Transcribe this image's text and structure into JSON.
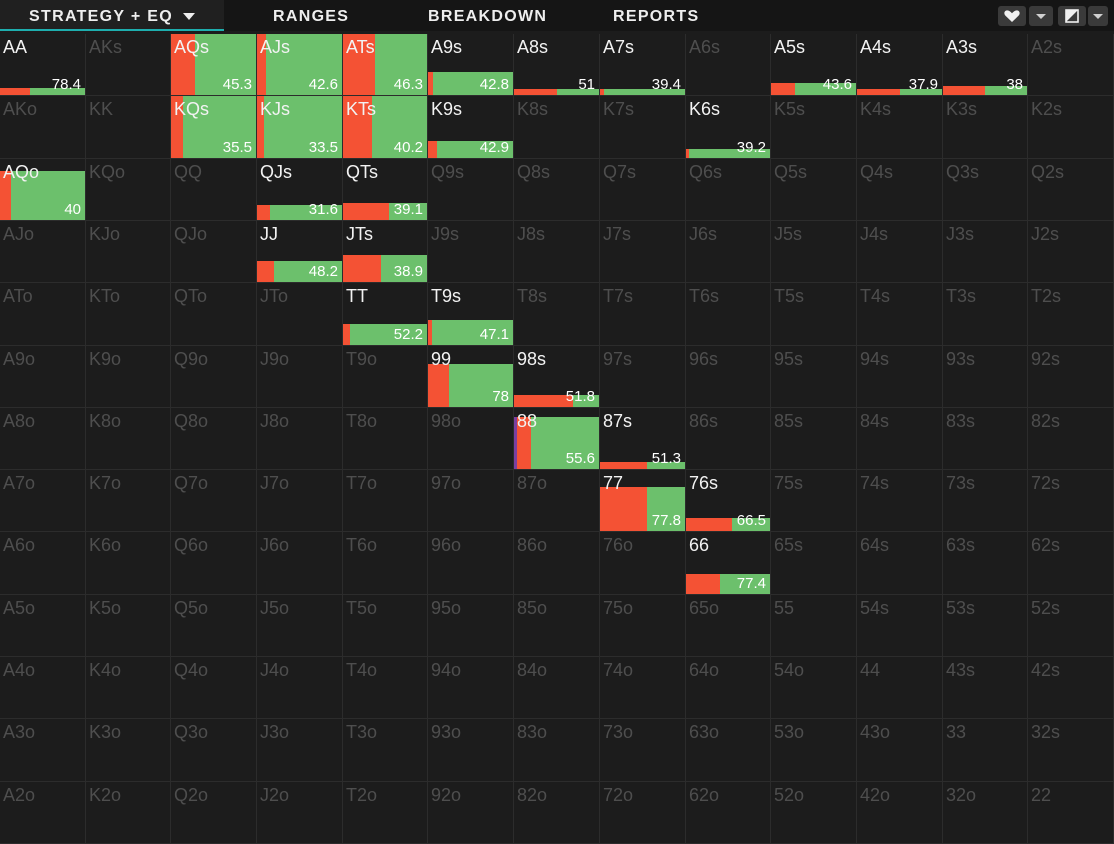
{
  "tabs": [
    {
      "id": "strategy",
      "label": "STRATEGY + EQ",
      "active": true
    },
    {
      "id": "ranges",
      "label": "RANGES"
    },
    {
      "id": "breakdown",
      "label": "BREAKDOWN"
    },
    {
      "id": "reports",
      "label": "REPORTS"
    }
  ],
  "toolbar": {
    "favorite_icon": "heart-icon",
    "view_icon": "contrast-icon",
    "dropdown_icon": "chevron-down-icon"
  },
  "colors": {
    "raise": "#f45234",
    "call": "#6cc06c",
    "accent": "#1eaeae",
    "background": "#1c1c1c"
  },
  "matrix": [
    [
      {
        "h": "AA",
        "eq": "78.4",
        "f": 0.12,
        "r": 0.35
      },
      {
        "h": "AKs"
      },
      {
        "h": "AQs",
        "eq": "45.3",
        "f": 1,
        "r": 0.28
      },
      {
        "h": "AJs",
        "eq": "42.6",
        "f": 1,
        "r": 0.1
      },
      {
        "h": "ATs",
        "eq": "46.3",
        "f": 1,
        "r": 0.38
      },
      {
        "h": "A9s",
        "eq": "42.8",
        "f": 0.38,
        "r": 0.06
      },
      {
        "h": "A8s",
        "eq": "51",
        "f": 0.06,
        "r": 0.5
      },
      {
        "h": "A7s",
        "eq": "39.4",
        "f": 0.06,
        "r": 0.05
      },
      {
        "h": "A6s"
      },
      {
        "h": "A5s",
        "eq": "43.6",
        "f": 0.2,
        "r": 0.28
      },
      {
        "h": "A4s",
        "eq": "37.9",
        "f": 0.06,
        "r": 0.5
      },
      {
        "h": "A3s",
        "eq": "38",
        "f": 0.15,
        "r": 0.5
      },
      {
        "h": "A2s"
      }
    ],
    [
      {
        "h": "AKo"
      },
      {
        "h": "KK"
      },
      {
        "h": "KQs",
        "eq": "35.5",
        "f": 1,
        "r": 0.14
      },
      {
        "h": "KJs",
        "eq": "33.5",
        "f": 1,
        "r": 0.08
      },
      {
        "h": "KTs",
        "eq": "40.2",
        "f": 1,
        "r": 0.35
      },
      {
        "h": "K9s",
        "eq": "42.9",
        "f": 0.28,
        "r": 0.1
      },
      {
        "h": "K8s"
      },
      {
        "h": "K7s"
      },
      {
        "h": "K6s",
        "eq": "39.2",
        "f": 0.14,
        "r": 0.03
      },
      {
        "h": "K5s"
      },
      {
        "h": "K4s"
      },
      {
        "h": "K3s"
      },
      {
        "h": "K2s"
      }
    ],
    [
      {
        "h": "AQo",
        "eq": "40",
        "f": 0.8,
        "r": 0.13
      },
      {
        "h": "KQo"
      },
      {
        "h": "QQ"
      },
      {
        "h": "QJs",
        "eq": "31.6",
        "f": 0.24,
        "r": 0.15
      },
      {
        "h": "QTs",
        "eq": "39.1",
        "f": 0.28,
        "r": 0.55
      },
      {
        "h": "Q9s"
      },
      {
        "h": "Q8s"
      },
      {
        "h": "Q7s"
      },
      {
        "h": "Q6s"
      },
      {
        "h": "Q5s"
      },
      {
        "h": "Q4s"
      },
      {
        "h": "Q3s"
      },
      {
        "h": "Q2s"
      }
    ],
    [
      {
        "h": "AJo"
      },
      {
        "h": "KJo"
      },
      {
        "h": "QJo"
      },
      {
        "h": "JJ",
        "eq": "48.2",
        "f": 0.34,
        "r": 0.2
      },
      {
        "h": "JTs",
        "eq": "38.9",
        "f": 0.45,
        "r": 0.45
      },
      {
        "h": "J9s"
      },
      {
        "h": "J8s"
      },
      {
        "h": "J7s"
      },
      {
        "h": "J6s"
      },
      {
        "h": "J5s"
      },
      {
        "h": "J4s"
      },
      {
        "h": "J3s"
      },
      {
        "h": "J2s"
      }
    ],
    [
      {
        "h": "ATo"
      },
      {
        "h": "KTo"
      },
      {
        "h": "QTo"
      },
      {
        "h": "JTo"
      },
      {
        "h": "TT",
        "eq": "52.2",
        "f": 0.34,
        "r": 0.08
      },
      {
        "h": "T9s",
        "eq": "47.1",
        "f": 0.4,
        "r": 0.05
      },
      {
        "h": "T8s"
      },
      {
        "h": "T7s"
      },
      {
        "h": "T6s"
      },
      {
        "h": "T5s"
      },
      {
        "h": "T4s"
      },
      {
        "h": "T3s"
      },
      {
        "h": "T2s"
      }
    ],
    [
      {
        "h": "A9o"
      },
      {
        "h": "K9o"
      },
      {
        "h": "Q9o"
      },
      {
        "h": "J9o"
      },
      {
        "h": "T9o"
      },
      {
        "h": "99",
        "eq": "78",
        "f": 0.7,
        "r": 0.25
      },
      {
        "h": "98s",
        "eq": "51.8",
        "f": 0.2,
        "r": 0.7
      },
      {
        "h": "97s"
      },
      {
        "h": "96s"
      },
      {
        "h": "95s"
      },
      {
        "h": "94s"
      },
      {
        "h": "93s"
      },
      {
        "h": "92s"
      }
    ],
    [
      {
        "h": "A8o"
      },
      {
        "h": "K8o"
      },
      {
        "h": "Q8o"
      },
      {
        "h": "J8o"
      },
      {
        "h": "T8o"
      },
      {
        "h": "98o"
      },
      {
        "h": "88",
        "eq": "55.6",
        "f": 0.85,
        "r": 0.2,
        "purple": true
      },
      {
        "h": "87s",
        "eq": "51.3",
        "f": 0.12,
        "r": 0.55
      },
      {
        "h": "86s"
      },
      {
        "h": "85s"
      },
      {
        "h": "84s"
      },
      {
        "h": "83s"
      },
      {
        "h": "82s"
      }
    ],
    [
      {
        "h": "A7o"
      },
      {
        "h": "K7o"
      },
      {
        "h": "Q7o"
      },
      {
        "h": "J7o"
      },
      {
        "h": "T7o"
      },
      {
        "h": "97o"
      },
      {
        "h": "87o"
      },
      {
        "h": "77",
        "eq": "77.8",
        "f": 0.72,
        "r": 0.55
      },
      {
        "h": "76s",
        "eq": "66.5",
        "f": 0.22,
        "r": 0.55
      },
      {
        "h": "75s"
      },
      {
        "h": "74s"
      },
      {
        "h": "73s"
      },
      {
        "h": "72s"
      }
    ],
    [
      {
        "h": "A6o"
      },
      {
        "h": "K6o"
      },
      {
        "h": "Q6o"
      },
      {
        "h": "J6o"
      },
      {
        "h": "T6o"
      },
      {
        "h": "96o"
      },
      {
        "h": "86o"
      },
      {
        "h": "76o"
      },
      {
        "h": "66",
        "eq": "77.4",
        "f": 0.32,
        "r": 0.4
      },
      {
        "h": "65s"
      },
      {
        "h": "64s"
      },
      {
        "h": "63s"
      },
      {
        "h": "62s"
      }
    ],
    [
      {
        "h": "A5o"
      },
      {
        "h": "K5o"
      },
      {
        "h": "Q5o"
      },
      {
        "h": "J5o"
      },
      {
        "h": "T5o"
      },
      {
        "h": "95o"
      },
      {
        "h": "85o"
      },
      {
        "h": "75o"
      },
      {
        "h": "65o"
      },
      {
        "h": "55"
      },
      {
        "h": "54s"
      },
      {
        "h": "53s"
      },
      {
        "h": "52s"
      }
    ],
    [
      {
        "h": "A4o"
      },
      {
        "h": "K4o"
      },
      {
        "h": "Q4o"
      },
      {
        "h": "J4o"
      },
      {
        "h": "T4o"
      },
      {
        "h": "94o"
      },
      {
        "h": "84o"
      },
      {
        "h": "74o"
      },
      {
        "h": "64o"
      },
      {
        "h": "54o"
      },
      {
        "h": "44"
      },
      {
        "h": "43s"
      },
      {
        "h": "42s"
      }
    ],
    [
      {
        "h": "A3o"
      },
      {
        "h": "K3o"
      },
      {
        "h": "Q3o"
      },
      {
        "h": "J3o"
      },
      {
        "h": "T3o"
      },
      {
        "h": "93o"
      },
      {
        "h": "83o"
      },
      {
        "h": "73o"
      },
      {
        "h": "63o"
      },
      {
        "h": "53o"
      },
      {
        "h": "43o"
      },
      {
        "h": "33"
      },
      {
        "h": "32s"
      }
    ],
    [
      {
        "h": "A2o"
      },
      {
        "h": "K2o"
      },
      {
        "h": "Q2o"
      },
      {
        "h": "J2o"
      },
      {
        "h": "T2o"
      },
      {
        "h": "92o"
      },
      {
        "h": "82o"
      },
      {
        "h": "72o"
      },
      {
        "h": "62o"
      },
      {
        "h": "52o"
      },
      {
        "h": "42o"
      },
      {
        "h": "32o"
      },
      {
        "h": "22"
      }
    ]
  ]
}
